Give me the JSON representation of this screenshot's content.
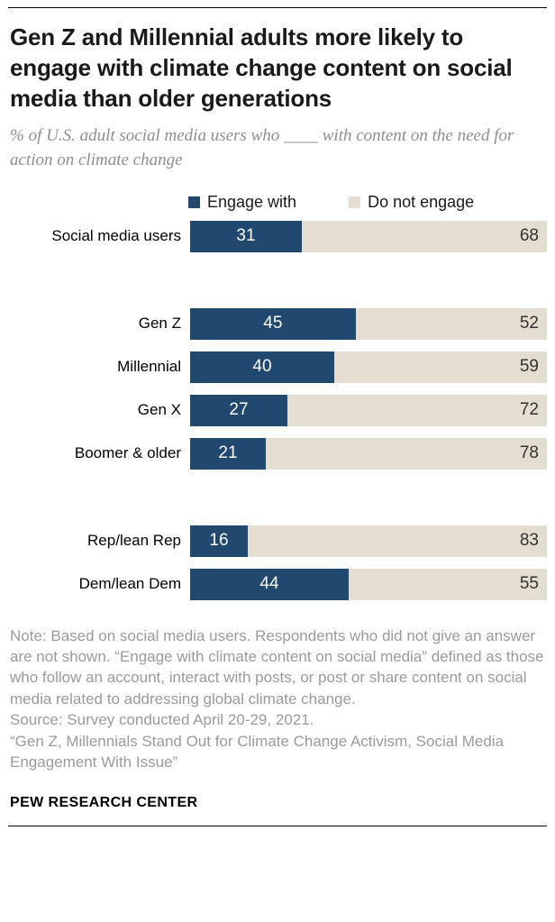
{
  "header": {
    "title": "Gen Z and Millennial adults more likely to engage with climate change content on social media than older generations",
    "subtitle": "% of U.S. adult social media users who ____ with content on the need for action on climate change"
  },
  "legend": [
    {
      "label": "Engage with",
      "color": "#21486E"
    },
    {
      "label": "Do not engage",
      "color": "#E3DECF"
    }
  ],
  "chart_data": {
    "type": "bar",
    "orientation": "horizontal",
    "stacked": true,
    "colors": {
      "engage": "#21486E",
      "do_not_engage": "#E3DECF"
    },
    "series_names": [
      "Engage with",
      "Do not engage"
    ],
    "xlim": [
      0,
      100
    ],
    "groups": [
      {
        "rows": [
          {
            "label": "Social media users",
            "engage": 31,
            "do_not_engage": 68
          }
        ]
      },
      {
        "rows": [
          {
            "label": "Gen Z",
            "engage": 45,
            "do_not_engage": 52
          },
          {
            "label": "Millennial",
            "engage": 40,
            "do_not_engage": 59
          },
          {
            "label": "Gen X",
            "engage": 27,
            "do_not_engage": 72
          },
          {
            "label": "Boomer & older",
            "engage": 21,
            "do_not_engage": 78
          }
        ]
      },
      {
        "rows": [
          {
            "label": "Rep/lean Rep",
            "engage": 16,
            "do_not_engage": 83
          },
          {
            "label": "Dem/lean Dem",
            "engage": 44,
            "do_not_engage": 55
          }
        ]
      }
    ]
  },
  "notes": {
    "note": "Note: Based on social media users. Respondents who did not give an answer are not shown. “Engage with climate content on social media” defined as those who follow an account, interact with posts, or post or share content on social media related to addressing global climate change.",
    "source": "Source: Survey conducted April 20-29, 2021.",
    "report": "“Gen Z, Millennials Stand Out for Climate Change Activism, Social Media Engagement With Issue”"
  },
  "brand": "PEW RESEARCH CENTER"
}
